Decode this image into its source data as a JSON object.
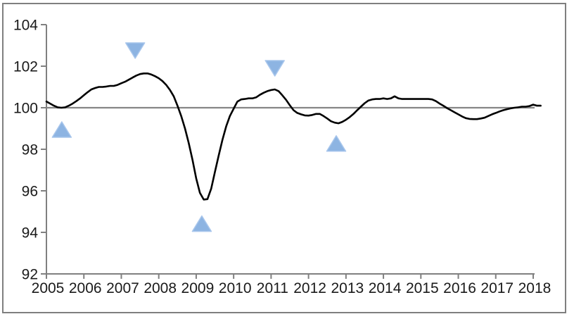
{
  "chart_data": {
    "type": "line",
    "title": "",
    "xlabel": "",
    "ylabel": "",
    "grid": "off",
    "legend": "none",
    "x_tick_labels": [
      "2005",
      "2006",
      "2007",
      "2008",
      "2009",
      "2010",
      "2011",
      "2012",
      "2013",
      "2014",
      "2015",
      "2016",
      "2017",
      "2018"
    ],
    "x_ticks": [
      2005,
      2006,
      2007,
      2008,
      2009,
      2010,
      2011,
      2012,
      2013,
      2014,
      2015,
      2016,
      2017,
      2018
    ],
    "y_tick_labels": [
      "92",
      "94",
      "96",
      "98",
      "100",
      "102",
      "104"
    ],
    "y_ticks": [
      92,
      94,
      96,
      98,
      100,
      102,
      104
    ],
    "xlim": [
      2005,
      2018.25
    ],
    "ylim": [
      92,
      104
    ],
    "reference_line_y": 100,
    "series": [
      {
        "name": "index-line",
        "color": "#000000",
        "x_start": 2005.0,
        "x_step": 0.1,
        "values": [
          100.3,
          100.2,
          100.1,
          100.02,
          100.0,
          100.02,
          100.1,
          100.2,
          100.32,
          100.45,
          100.6,
          100.75,
          100.88,
          100.95,
          101.0,
          101.0,
          101.02,
          101.05,
          101.05,
          101.1,
          101.18,
          101.25,
          101.35,
          101.45,
          101.55,
          101.62,
          101.65,
          101.65,
          101.6,
          101.52,
          101.42,
          101.28,
          101.1,
          100.85,
          100.55,
          100.1,
          99.6,
          99.0,
          98.3,
          97.5,
          96.6,
          95.9,
          95.58,
          95.6,
          96.1,
          96.9,
          97.7,
          98.45,
          99.1,
          99.6,
          99.95,
          100.3,
          100.4,
          100.42,
          100.45,
          100.45,
          100.5,
          100.62,
          100.72,
          100.8,
          100.85,
          100.88,
          100.8,
          100.6,
          100.38,
          100.12,
          99.88,
          99.75,
          99.68,
          99.63,
          99.62,
          99.65,
          99.7,
          99.7,
          99.6,
          99.48,
          99.35,
          99.28,
          99.25,
          99.32,
          99.42,
          99.55,
          99.7,
          99.88,
          100.05,
          100.22,
          100.35,
          100.4,
          100.42,
          100.42,
          100.45,
          100.42,
          100.45,
          100.55,
          100.45,
          100.42,
          100.42,
          100.42,
          100.42,
          100.42,
          100.42,
          100.42,
          100.42,
          100.4,
          100.32,
          100.2,
          100.1,
          99.98,
          99.88,
          99.78,
          99.68,
          99.58,
          99.5,
          99.46,
          99.45,
          99.45,
          99.48,
          99.52,
          99.6,
          99.68,
          99.75,
          99.82,
          99.88,
          99.93,
          99.97,
          100.0,
          100.02,
          100.05,
          100.05,
          100.08,
          100.15,
          100.1,
          100.1
        ]
      }
    ],
    "markers": [
      {
        "symbol": "triangle-up",
        "x": 2005.41,
        "y": 98.95
      },
      {
        "symbol": "triangle-down",
        "x": 2007.37,
        "y": 102.75
      },
      {
        "symbol": "triangle-up",
        "x": 2009.15,
        "y": 94.42
      },
      {
        "symbol": "triangle-down",
        "x": 2011.1,
        "y": 101.9
      },
      {
        "symbol": "triangle-up",
        "x": 2012.74,
        "y": 98.28
      }
    ],
    "colors": {
      "line": "#000000",
      "axis": "#808080",
      "reference_line": "#868686",
      "marker_fill": "#8db4e2",
      "frame_border": "#7f7f7f",
      "tick_text": "#1a1a1a"
    }
  }
}
